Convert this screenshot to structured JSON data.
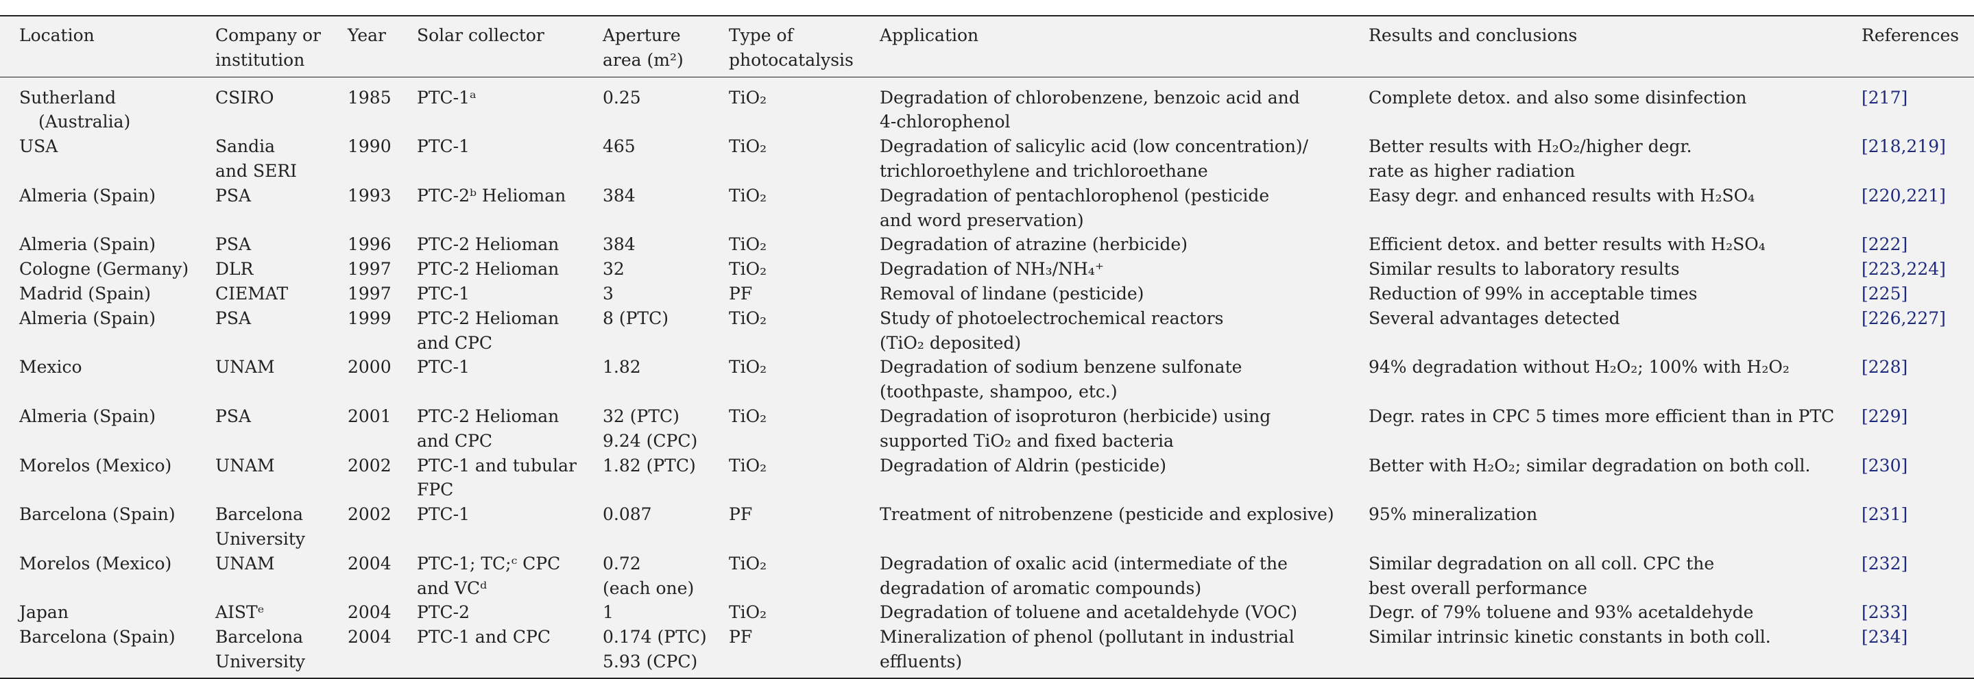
{
  "table": {
    "header": [
      "Location",
      "Company or\ninstitution",
      "Year",
      "Solar collector",
      "Aperture\narea (m²)",
      "Type of\nphotocatalysis",
      "Application",
      "Results and conclusions",
      "References"
    ],
    "rows": [
      [
        "Sutherland\n(Australia)",
        "CSIRO",
        "1985",
        "PTC-1ᵃ",
        "0.25",
        "TiO₂",
        "Degradation of chlorobenzene, benzoic acid and\n4-chlorophenol",
        "Complete detox. and also some disinfection",
        "[217]"
      ],
      [
        "USA",
        "Sandia\nand SERI",
        "1990",
        "PTC-1",
        "465",
        "TiO₂",
        "Degradation of salicylic acid (low concentration)/\ntrichloroethylene and trichloroethane",
        "Better results with H₂O₂/higher degr.\nrate as higher radiation",
        "[218,219]"
      ],
      [
        "Almeria (Spain)",
        "PSA",
        "1993",
        "PTC-2ᵇ Helioman",
        "384",
        "TiO₂",
        "Degradation of pentachlorophenol (pesticide\nand word preservation)",
        "Easy degr. and enhanced results with H₂SO₄",
        "[220,221]"
      ],
      [
        "Almeria (Spain)",
        "PSA",
        "1996",
        "PTC-2 Helioman",
        "384",
        "TiO₂",
        "Degradation of atrazine (herbicide)",
        "Efficient detox. and better results with H₂SO₄",
        "[222]"
      ],
      [
        "Cologne (Germany)",
        "DLR",
        "1997",
        "PTC-2 Helioman",
        "32",
        "TiO₂",
        "Degradation of NH₃/NH₄⁺",
        "Similar results to laboratory results",
        "[223,224]"
      ],
      [
        "Madrid (Spain)",
        "CIEMAT",
        "1997",
        "PTC-1",
        "3",
        "PF",
        "Removal of lindane (pesticide)",
        "Reduction of 99% in acceptable times",
        "[225]"
      ],
      [
        "Almeria (Spain)",
        "PSA",
        "1999",
        "PTC-2 Helioman\nand CPC",
        "8 (PTC)",
        "TiO₂",
        "Study of photoelectrochemical reactors\n(TiO₂ deposited)",
        "Several advantages detected",
        "[226,227]"
      ],
      [
        "Mexico",
        "UNAM",
        "2000",
        "PTC-1",
        "1.82",
        "TiO₂",
        "Degradation of sodium benzene sulfonate\n(toothpaste, shampoo, etc.)",
        "94% degradation without H₂O₂; 100% with H₂O₂",
        "[228]"
      ],
      [
        "Almeria (Spain)",
        "PSA",
        "2001",
        "PTC-2 Helioman\nand CPC",
        "32 (PTC)\n9.24 (CPC)",
        "TiO₂",
        "Degradation of isoproturon (herbicide) using\nsupported TiO₂ and fixed bacteria",
        "Degr. rates in CPC 5 times more efficient than in PTC",
        "[229]"
      ],
      [
        "Morelos (Mexico)",
        "UNAM",
        "2002",
        "PTC-1 and tubular\nFPC",
        "1.82 (PTC)",
        "TiO₂",
        "Degradation of Aldrin (pesticide)",
        "Better with H₂O₂; similar degradation on both coll.",
        "[230]"
      ],
      [
        "Barcelona (Spain)",
        "Barcelona\nUniversity",
        "2002",
        "PTC-1",
        "0.087",
        "PF",
        "Treatment of nitrobenzene (pesticide and explosive)",
        "95% mineralization",
        "[231]"
      ],
      [
        "Morelos (Mexico)",
        "UNAM",
        "2004",
        "PTC-1; TC;ᶜ CPC\nand VCᵈ",
        "0.72\n(each one)",
        "TiO₂",
        "Degradation of oxalic acid (intermediate of the\ndegradation of aromatic compounds)",
        "Similar degradation on all coll. CPC the\nbest overall performance",
        "[232]"
      ],
      [
        "Japan",
        "AISTᵉ",
        "2004",
        "PTC-2",
        "1",
        "TiO₂",
        "Degradation of toluene and acetaldehyde (VOC)",
        "Degr. of 79% toluene and 93% acetaldehyde",
        "[233]"
      ],
      [
        "Barcelona (Spain)",
        "Barcelona\nUniversity",
        "2004",
        "PTC-1 and CPC",
        "0.174 (PTC)\n5.93 (CPC)",
        "PF",
        "Mineralization of phenol (pollutant in industrial\neffluents)",
        "Similar intrinsic kinetic constants in both coll.",
        "[234]"
      ]
    ]
  }
}
